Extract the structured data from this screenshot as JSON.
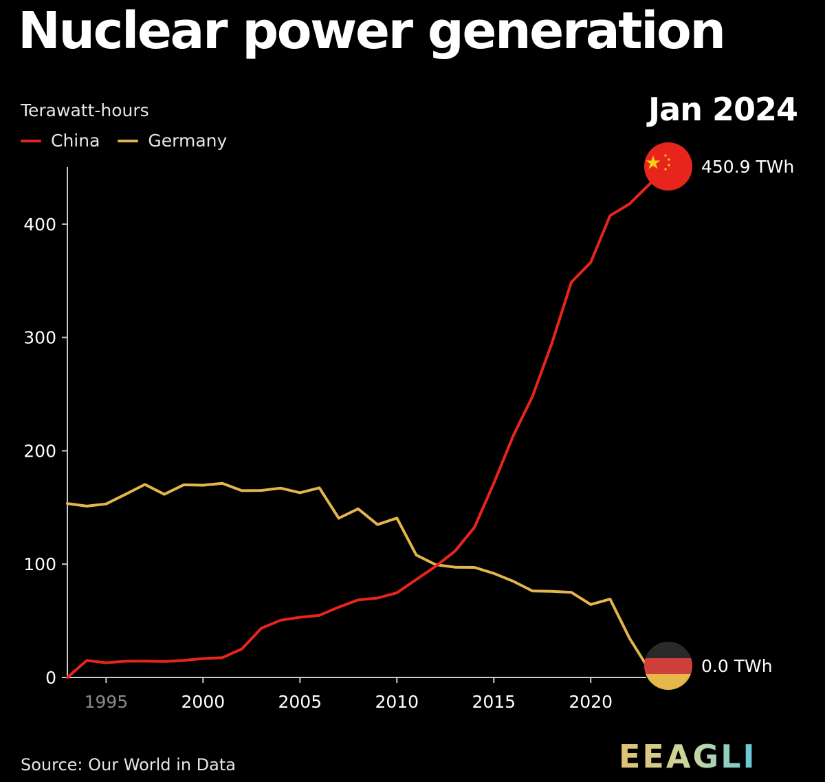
{
  "header": {
    "title": "Nuclear power generation",
    "date_label": "Jan 2024"
  },
  "footer": {
    "source": "Source: Our World in Data",
    "brand": "EEAGLI"
  },
  "colors": {
    "china": "#e8251c",
    "germany": "#e3b54c",
    "axis": "#cccccc",
    "background": "#000000"
  },
  "chart_data": {
    "type": "line",
    "title": "Nuclear power generation",
    "ylabel": "Terawatt-hours",
    "xlabel": "",
    "xlim": [
      1993,
      2024
    ],
    "ylim": [
      0,
      450
    ],
    "grid": false,
    "legend_position": "top-left",
    "x_ticks": [
      {
        "value": 1995,
        "label": "1995"
      },
      {
        "value": 2000,
        "label": "2000"
      },
      {
        "value": 2005,
        "label": "2005"
      },
      {
        "value": 2010,
        "label": "2010"
      },
      {
        "value": 2015,
        "label": "2015"
      },
      {
        "value": 2020,
        "label": "2020"
      }
    ],
    "y_ticks": [
      {
        "value": 0,
        "label": "0"
      },
      {
        "value": 100,
        "label": "100"
      },
      {
        "value": 200,
        "label": "200"
      },
      {
        "value": 300,
        "label": "300"
      },
      {
        "value": 400,
        "label": "400"
      }
    ],
    "series": [
      {
        "name": "China",
        "key": "china",
        "end_label": "450.9 TWh",
        "end_marker": "china-flag",
        "x": [
          1993,
          1994,
          1995,
          1996,
          1997,
          1998,
          1999,
          2000,
          2001,
          2002,
          2003,
          2004,
          2005,
          2006,
          2007,
          2008,
          2009,
          2010,
          2011,
          2012,
          2013,
          2014,
          2015,
          2016,
          2017,
          2018,
          2019,
          2020,
          2021,
          2022,
          2023,
          2024
        ],
        "values": [
          0,
          15,
          13,
          14.3,
          14.4,
          14.1,
          15,
          16.7,
          17.5,
          25.1,
          43.3,
          50.5,
          53.1,
          54.8,
          62.1,
          68.4,
          70.1,
          74.7,
          86.4,
          98.1,
          111.5,
          132.5,
          171.4,
          213.2,
          248.1,
          295.0,
          348.7,
          366.2,
          407.5,
          417.8,
          434.7,
          450.9
        ]
      },
      {
        "name": "Germany",
        "key": "germany",
        "end_label": "0.0 TWh",
        "end_marker": "germany-flag",
        "x": [
          1993,
          1994,
          1995,
          1996,
          1997,
          1998,
          1999,
          2000,
          2001,
          2002,
          2003,
          2004,
          2005,
          2006,
          2007,
          2008,
          2009,
          2010,
          2011,
          2012,
          2013,
          2014,
          2015,
          2016,
          2017,
          2018,
          2019,
          2020,
          2021,
          2022,
          2023,
          2024
        ],
        "values": [
          153.5,
          151.2,
          153.1,
          161.6,
          170.3,
          161.6,
          170,
          169.6,
          171.3,
          164.8,
          165,
          167.1,
          163,
          167.3,
          140.5,
          148.8,
          134.9,
          140.6,
          108,
          99.5,
          97.3,
          97.1,
          91.8,
          84.9,
          76.3,
          76,
          75.1,
          64.4,
          69.1,
          34.7,
          7.2,
          0
        ]
      }
    ]
  }
}
